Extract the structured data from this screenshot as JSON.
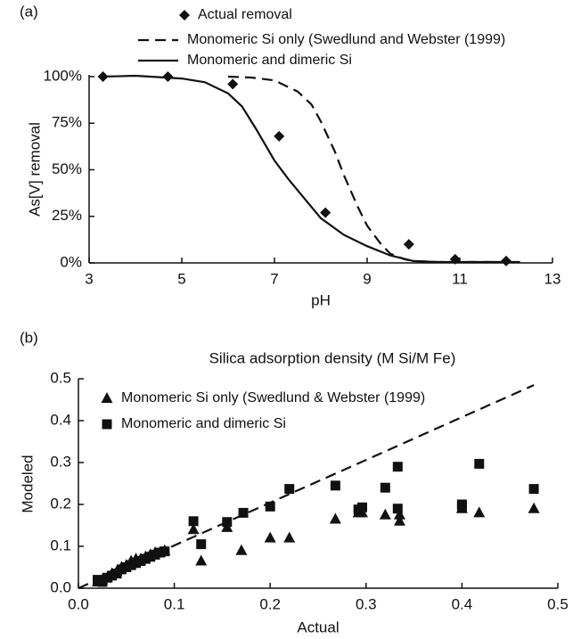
{
  "chart_data": [
    {
      "type": "line",
      "panel_label": "(a)",
      "x_label": "pH",
      "y_label": "As[V] removal",
      "xlim": [
        3,
        13
      ],
      "xticks": [
        3,
        5,
        7,
        9,
        11,
        13
      ],
      "ylim": [
        0,
        100
      ],
      "yticks": [
        {
          "value": 0,
          "label": "0%"
        },
        {
          "value": 25,
          "label": "25%"
        },
        {
          "value": 50,
          "label": "50%"
        },
        {
          "value": 75,
          "label": "75%"
        },
        {
          "value": 100,
          "label": "100%"
        }
      ],
      "series": [
        {
          "name": "Actual removal",
          "style": "diamond",
          "color": "#111111",
          "x": [
            3.3,
            4.7,
            6.1,
            7.1,
            8.1,
            9.9,
            10.9,
            12
          ],
          "values": [
            100,
            100,
            96,
            68,
            27,
            10,
            2,
            1
          ]
        },
        {
          "name": "Monomeric Si only (Swedlund and Webster (1999)",
          "style": "dashed",
          "color": "#111111",
          "x": [
            6,
            6.5,
            7,
            7.5,
            7.8,
            8,
            8.3,
            8.5,
            8.8,
            9,
            9.3,
            9.5,
            9.8,
            10,
            10.5,
            11,
            12
          ],
          "values": [
            100,
            99.5,
            98,
            92,
            85,
            76,
            60,
            47,
            30,
            20,
            10,
            5,
            2,
            1,
            0.5,
            0.5,
            0.5
          ]
        },
        {
          "name": "Monomeric and dimeric Si",
          "style": "solid",
          "color": "#111111",
          "x": [
            3.3,
            4,
            5,
            5.5,
            6,
            6.3,
            6.6,
            7,
            7.3,
            7.6,
            8,
            8.5,
            9,
            9.5,
            10,
            10.5,
            11,
            12.3
          ],
          "values": [
            100,
            100.5,
            99,
            97,
            91,
            84,
            72,
            55,
            45,
            36,
            24,
            15,
            9,
            4,
            1,
            0.5,
            0.5,
            0.5
          ]
        }
      ]
    },
    {
      "type": "scatter",
      "panel_label": "(b)",
      "title": "Silica adsorption density (M Si/M Fe)",
      "x_label": "Actual",
      "y_label": "Modeled",
      "xlim": [
        0,
        0.5
      ],
      "xticks": [
        {
          "value": 0,
          "label": "0.0"
        },
        0.1,
        0.2,
        0.3,
        0.4,
        0.5
      ],
      "ylim": [
        0,
        0.5
      ],
      "yticks": [
        {
          "value": 0,
          "label": "0.0"
        },
        0.1,
        0.2,
        0.3,
        0.4,
        0.5
      ],
      "diagonal": {
        "style": "dashed",
        "x": [
          0,
          0.475
        ],
        "values": [
          0,
          0.485
        ]
      },
      "series": [
        {
          "name": "Monomeric Si only (Swedlund & Webster (1999)",
          "style": "triangle",
          "color": "#111111",
          "x": [
            0.02,
            0.025,
            0.03,
            0.035,
            0.04,
            0.045,
            0.05,
            0.055,
            0.06,
            0.065,
            0.07,
            0.075,
            0.08,
            0.085,
            0.09,
            0.12,
            0.128,
            0.155,
            0.17,
            0.2,
            0.22,
            0.268,
            0.292,
            0.296,
            0.32,
            0.335,
            0.335,
            0.4,
            0.418,
            0.475
          ],
          "values": [
            0.015,
            0.02,
            0.025,
            0.035,
            0.04,
            0.05,
            0.055,
            0.065,
            0.07,
            0.07,
            0.075,
            0.08,
            0.085,
            0.085,
            0.09,
            0.14,
            0.065,
            0.145,
            0.09,
            0.12,
            0.12,
            0.165,
            0.18,
            0.18,
            0.175,
            0.16,
            0.175,
            0.19,
            0.18,
            0.19
          ]
        },
        {
          "name": "Monomeric and dimeric Si",
          "style": "square",
          "color": "#111111",
          "x": [
            0.02,
            0.025,
            0.03,
            0.035,
            0.04,
            0.045,
            0.05,
            0.055,
            0.06,
            0.065,
            0.07,
            0.075,
            0.08,
            0.085,
            0.09,
            0.12,
            0.128,
            0.155,
            0.172,
            0.2,
            0.22,
            0.268,
            0.292,
            0.296,
            0.32,
            0.333,
            0.333,
            0.4,
            0.4,
            0.418,
            0.475
          ],
          "values": [
            0.02,
            0.015,
            0.025,
            0.03,
            0.035,
            0.045,
            0.05,
            0.055,
            0.06,
            0.065,
            0.07,
            0.075,
            0.08,
            0.085,
            0.088,
            0.16,
            0.105,
            0.158,
            0.18,
            0.195,
            0.237,
            0.245,
            0.188,
            0.193,
            0.24,
            0.19,
            0.29,
            0.2,
            0.195,
            0.297,
            0.237
          ]
        }
      ]
    }
  ]
}
